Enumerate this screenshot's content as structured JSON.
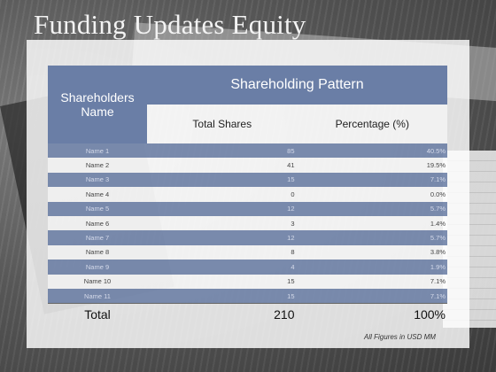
{
  "title": "Funding Updates Equity",
  "table": {
    "header_name": "Shareholders Name",
    "header_pattern": "Shareholding Pattern",
    "col_shares": "Total Shares",
    "col_percentage": "Percentage (%)",
    "rows": [
      {
        "name": "Name 1",
        "shares": "85",
        "percentage": "40.5%"
      },
      {
        "name": "Name 2",
        "shares": "41",
        "percentage": "19.5%"
      },
      {
        "name": "Name 3",
        "shares": "15",
        "percentage": "7.1%"
      },
      {
        "name": "Name 4",
        "shares": "0",
        "percentage": "0.0%"
      },
      {
        "name": "Name 5",
        "shares": "12",
        "percentage": "5.7%"
      },
      {
        "name": "Name 6",
        "shares": "3",
        "percentage": "1.4%"
      },
      {
        "name": "Name 7",
        "shares": "12",
        "percentage": "5.7%"
      },
      {
        "name": "Name 8",
        "shares": "8",
        "percentage": "3.8%"
      },
      {
        "name": "Name 9",
        "shares": "4",
        "percentage": "1.9%"
      },
      {
        "name": "Name 10",
        "shares": "15",
        "percentage": "7.1%"
      },
      {
        "name": "Name 11",
        "shares": "15",
        "percentage": "7.1%"
      }
    ],
    "total": {
      "name": "Total",
      "shares": "210",
      "percentage": "100%"
    }
  },
  "footnote": "All Figures in USD MM",
  "colors": {
    "header_blue": "#6a7ea6",
    "row_blue": "#6276a0"
  }
}
